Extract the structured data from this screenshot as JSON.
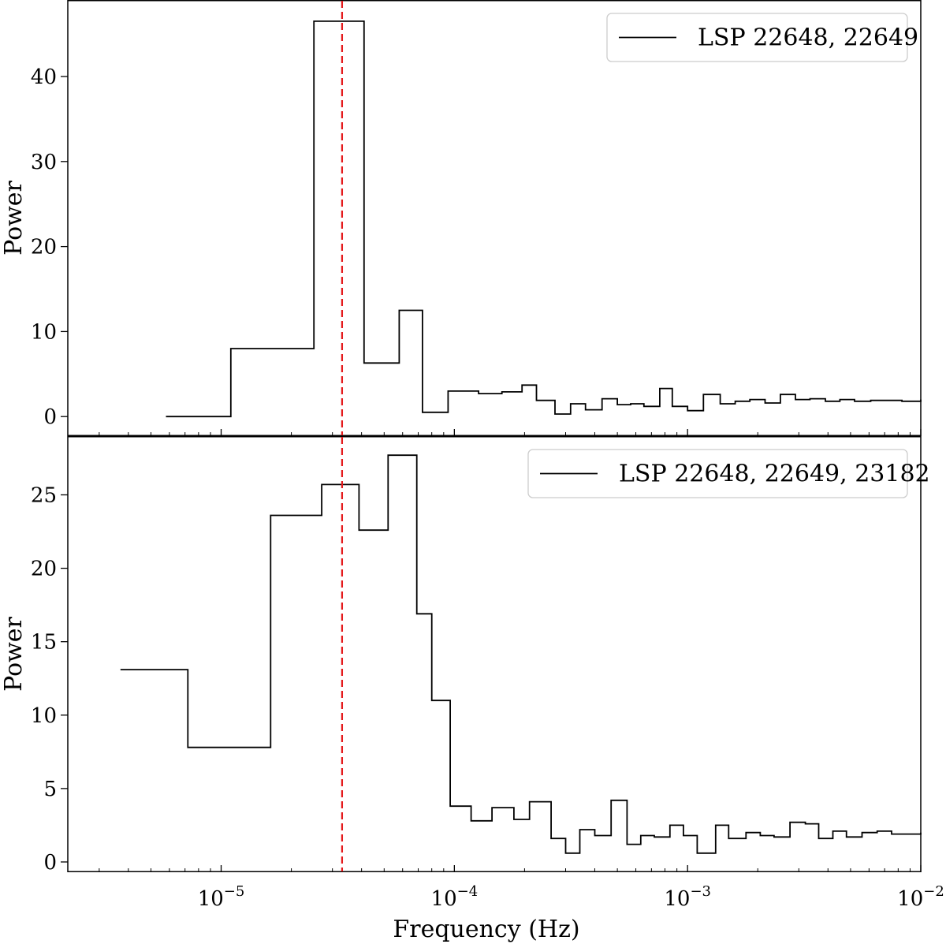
{
  "chart_data": [
    {
      "type": "line",
      "drawstyle": "steps",
      "xscale": "log",
      "xlim": [
        2.2e-06,
        0.01
      ],
      "ylim": [
        -2.3,
        49
      ],
      "yticks": [
        0,
        10,
        20,
        30,
        40
      ],
      "ylabel": "Power",
      "xlabel": "",
      "grid": false,
      "legend_position": "top-right",
      "vline": {
        "x": 3.3e-05,
        "color": "#e41a1c",
        "style": "dashed"
      },
      "series": [
        {
          "name": "LSP 22648, 22649",
          "color": "#000000",
          "x": [
            5.8e-06,
            1.1e-05,
            2.5e-05,
            4.1e-05,
            5.8e-05,
            7.3e-05,
            9.4e-05,
            0.000127,
            0.00016,
            0.000195,
            0.000225,
            0.00027,
            0.000315,
            0.000365,
            0.00043,
            0.0005,
            0.00057,
            0.00065,
            0.00076,
            0.00086,
            0.001,
            0.00117,
            0.00138,
            0.0016,
            0.00185,
            0.00215,
            0.0025,
            0.0029,
            0.00335,
            0.0039,
            0.0045,
            0.0052,
            0.0061,
            0.0071,
            0.0083,
            0.01
          ],
          "y": [
            0.0,
            8.0,
            46.5,
            6.3,
            12.5,
            0.5,
            3.0,
            2.7,
            2.9,
            3.7,
            1.9,
            0.3,
            1.5,
            0.8,
            2.1,
            1.4,
            1.5,
            1.2,
            3.3,
            1.2,
            0.7,
            2.6,
            1.5,
            1.8,
            2.0,
            1.6,
            2.6,
            2.0,
            2.1,
            1.8,
            2.0,
            1.8,
            1.9,
            1.9,
            1.8,
            2.0
          ]
        }
      ]
    },
    {
      "type": "line",
      "drawstyle": "steps",
      "xscale": "log",
      "xlim": [
        2.2e-06,
        0.01
      ],
      "ylim": [
        -0.7,
        29.0
      ],
      "yticks": [
        0,
        5,
        10,
        15,
        20,
        25
      ],
      "ylabel": "Power",
      "xlabel": "Frequency (Hz)",
      "xticks": [
        1e-05,
        0.0001,
        0.001,
        0.01
      ],
      "xtick_labels": [
        "10",
        "10",
        "10",
        "10"
      ],
      "xtick_exponents": [
        "−5",
        "−4",
        "−3",
        "−2"
      ],
      "grid": false,
      "legend_position": "top-right",
      "vline": {
        "x": 3.3e-05,
        "color": "#e41a1c",
        "style": "dashed"
      },
      "series": [
        {
          "name": "LSP 22648, 22649, 23182",
          "color": "#000000",
          "x": [
            3.7e-06,
            7.2e-06,
            1.63e-05,
            2.7e-05,
            3.9e-05,
            5.2e-05,
            6.9e-05,
            8e-05,
            9.6e-05,
            0.000118,
            0.000145,
            0.00018,
            0.00021,
            0.00026,
            0.0003,
            0.000345,
            0.0004,
            0.00047,
            0.00055,
            0.00063,
            0.00072,
            0.00084,
            0.00096,
            0.0011,
            0.00132,
            0.0015,
            0.00178,
            0.00205,
            0.00235,
            0.00275,
            0.0032,
            0.00365,
            0.0042,
            0.0048,
            0.0056,
            0.0065,
            0.0075,
            0.0087,
            0.01
          ],
          "y": [
            13.1,
            7.8,
            23.6,
            25.7,
            22.6,
            27.7,
            16.9,
            11.0,
            3.8,
            2.8,
            3.7,
            2.9,
            4.1,
            1.6,
            0.6,
            2.2,
            1.8,
            4.2,
            1.2,
            1.8,
            1.7,
            2.5,
            1.8,
            0.6,
            2.5,
            1.6,
            2.0,
            1.8,
            1.7,
            2.7,
            2.6,
            1.6,
            2.1,
            1.7,
            2.0,
            2.1,
            1.9,
            1.9,
            2.0
          ]
        }
      ]
    }
  ]
}
